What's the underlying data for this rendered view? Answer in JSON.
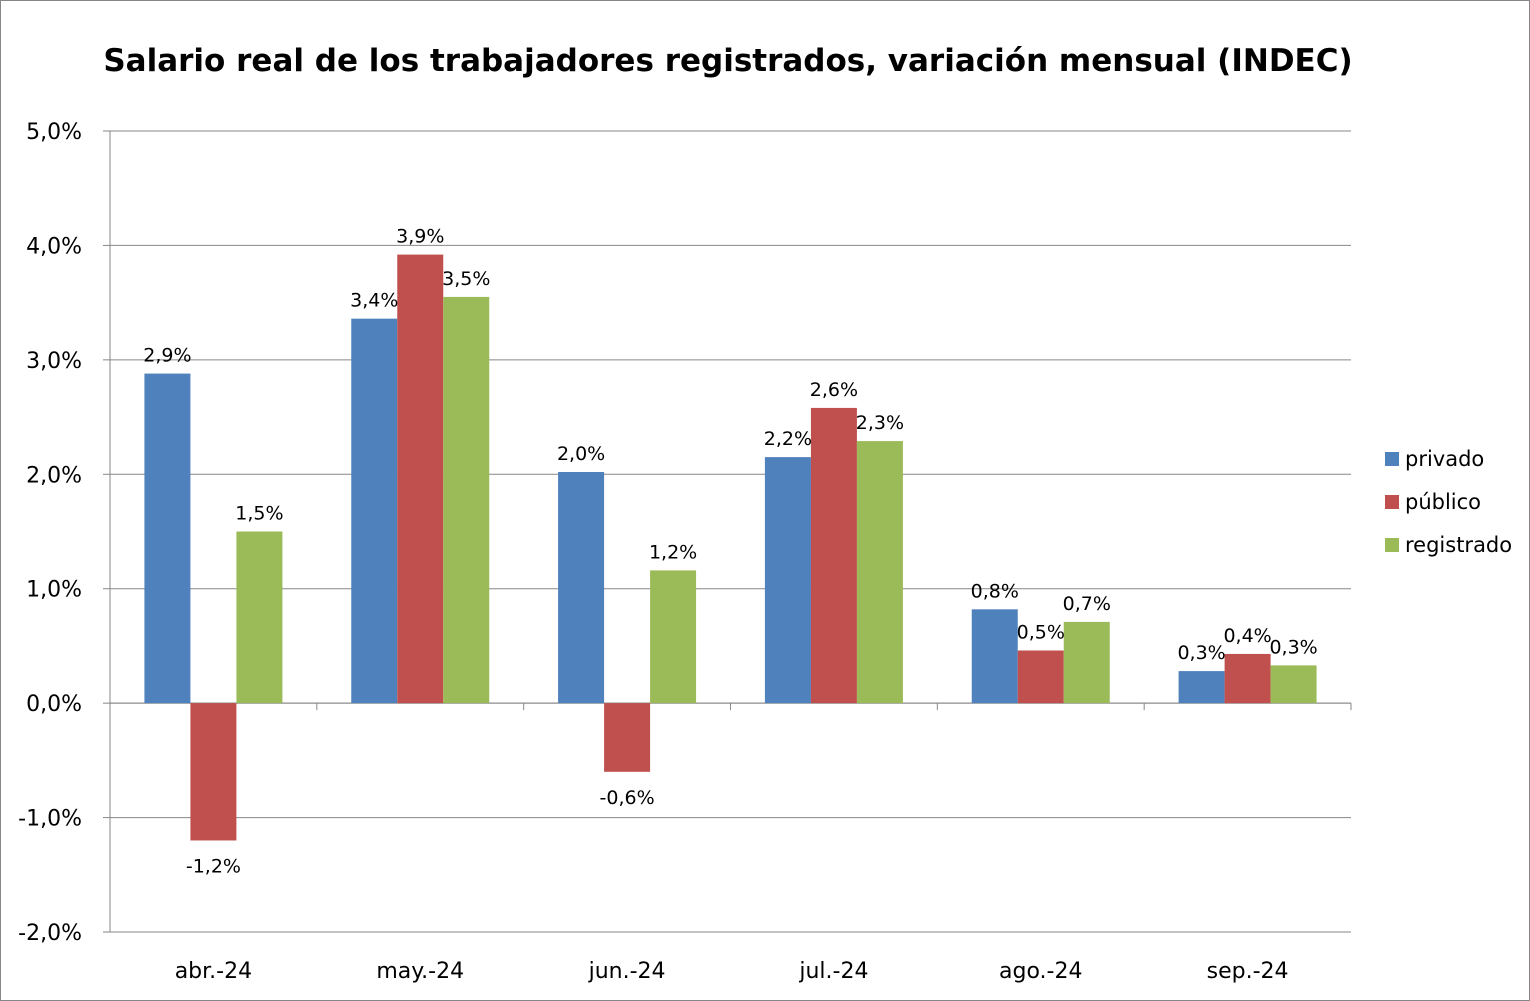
{
  "chart_data": {
    "type": "bar",
    "title": "Salario real de los trabajadores registrados, variación mensual (INDEC)",
    "xlabel": "",
    "ylabel": "",
    "categories": [
      "abr.-24",
      "may.-24",
      "jun.-24",
      "jul.-24",
      "ago.-24",
      "sep.-24"
    ],
    "ylim": [
      -2.0,
      5.0
    ],
    "yticks": [
      {
        "value": 5.0,
        "label": "5,0%"
      },
      {
        "value": 4.0,
        "label": "4,0%"
      },
      {
        "value": 3.0,
        "label": "3,0%"
      },
      {
        "value": 2.0,
        "label": "2,0%"
      },
      {
        "value": 1.0,
        "label": "1,0%"
      },
      {
        "value": 0.0,
        "label": "0,0%"
      },
      {
        "value": -1.0,
        "label": "-1,0%"
      },
      {
        "value": -2.0,
        "label": "-2,0%"
      }
    ],
    "grid": true,
    "legend_position": "right",
    "series": [
      {
        "name": "privado",
        "color": "#4F81BD",
        "values": [
          2.88,
          3.36,
          2.02,
          2.15,
          0.82,
          0.28
        ],
        "labels": [
          "2,9%",
          "3,4%",
          "2,0%",
          "2,2%",
          "0,8%",
          "0,3%"
        ]
      },
      {
        "name": "público",
        "color": "#C0504D",
        "values": [
          -1.2,
          3.92,
          -0.6,
          2.58,
          0.46,
          0.43
        ],
        "labels": [
          "-1,2%",
          "3,9%",
          "-0,6%",
          "2,6%",
          "0,5%",
          "0,4%"
        ]
      },
      {
        "name": "registrado",
        "color": "#9BBB59",
        "values": [
          1.5,
          3.55,
          1.16,
          2.29,
          0.71,
          0.33
        ],
        "labels": [
          "1,5%",
          "3,5%",
          "1,2%",
          "2,3%",
          "0,7%",
          "0,3%"
        ]
      }
    ]
  },
  "colors": {
    "gridline": "#878787",
    "axis": "#878787",
    "frame": "#878787"
  }
}
